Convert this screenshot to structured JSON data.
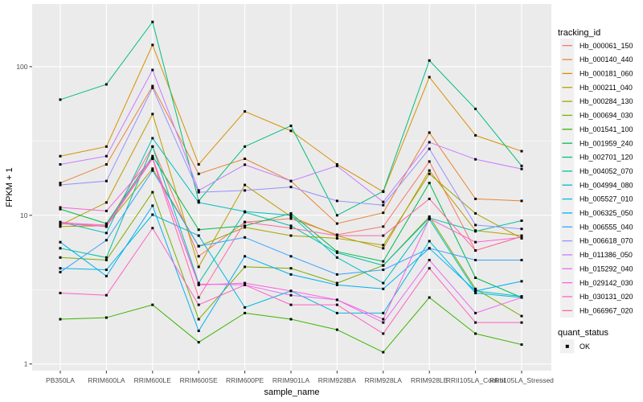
{
  "colors": {
    "panel_bg": "#EBEBEB",
    "grid_major": "#FFFFFF",
    "grid_minor": "#FFFFFF",
    "legend_key_bg": "#F0F0F0",
    "tick_mark": "#333333",
    "tick_label": "#4D4D4D",
    "point": "#000000",
    "page_bg": "#FFFFFF"
  },
  "chart_data": {
    "type": "line",
    "title": "",
    "xlabel": "sample_name",
    "ylabel": "FPKM + 1",
    "x_type": "categorical",
    "y_scale": "log10",
    "ylim": [
      0.9,
      265
    ],
    "y_ticks": [
      1,
      10,
      100
    ],
    "y_minor_ticks": [
      3.162,
      31.62
    ],
    "grid": "on",
    "point_marker": "filled-square",
    "categories": [
      "PB350LA",
      "RRIM600LA",
      "RRIM600LE",
      "RRIM600SE",
      "RRIM600PE",
      "RRIM901LA",
      "RRIM928BA",
      "RRIM928LA",
      "RRIM928LE",
      "RRII105LA_Control",
      "RRII105LA_Stressed"
    ],
    "legend": {
      "position": "right",
      "color_title": "tracking_id",
      "shape_title": "quant_status",
      "shape_items": [
        {
          "label": "OK",
          "marker": "filled-square",
          "color": "#000000"
        }
      ]
    },
    "series": [
      {
        "name": "Hb_000061_150",
        "color": "#F8766D",
        "values": [
          9.0,
          8.4,
          29,
          5.3,
          9.0,
          9.5,
          7.4,
          8.4,
          23,
          5.8,
          7.2
        ]
      },
      {
        "name": "Hb_000140_440",
        "color": "#EA8331",
        "values": [
          16.5,
          22,
          74,
          19,
          24,
          17,
          8.8,
          10.4,
          36,
          12.9,
          12.5
        ]
      },
      {
        "name": "Hb_000181_060",
        "color": "#D89000",
        "values": [
          25,
          29,
          140,
          22,
          50,
          37,
          22,
          14.4,
          85,
          34.5,
          27
        ]
      },
      {
        "name": "Hb_000211_040",
        "color": "#C09B00",
        "values": [
          8.6,
          12.2,
          48,
          4.5,
          16,
          9.8,
          7.3,
          6.0,
          20,
          7.9,
          7.3
        ]
      },
      {
        "name": "Hb_000284_130",
        "color": "#A3A500",
        "values": [
          8.4,
          8.5,
          20.6,
          6.2,
          8.3,
          7.3,
          7.0,
          6.3,
          19,
          10.3,
          7.0
        ]
      },
      {
        "name": "Hb_000694_030",
        "color": "#7CAE00",
        "values": [
          5.2,
          5.0,
          14.3,
          2.0,
          4.5,
          4.4,
          3.5,
          4.6,
          9.8,
          3.2,
          2.1
        ]
      },
      {
        "name": "Hb_001541_100",
        "color": "#39B600",
        "values": [
          2.0,
          2.05,
          2.5,
          1.4,
          2.2,
          2.0,
          1.7,
          1.2,
          2.8,
          1.6,
          1.35
        ]
      },
      {
        "name": "Hb_001959_240",
        "color": "#00BB4E",
        "values": [
          11.0,
          8.8,
          25,
          8.0,
          8.5,
          10.3,
          5.7,
          4.9,
          16.5,
          3.8,
          2.8
        ]
      },
      {
        "name": "Hb_002701_120",
        "color": "#00BF7D",
        "values": [
          60,
          76,
          200,
          12.5,
          29,
          40,
          10,
          14.5,
          110,
          52,
          21.5
        ]
      },
      {
        "name": "Hb_004052_070",
        "color": "#00C1A3",
        "values": [
          6.0,
          5.2,
          29,
          3.5,
          10.5,
          8.5,
          5.6,
          4.6,
          9.6,
          7.8,
          9.2
        ]
      },
      {
        "name": "Hb_004994_080",
        "color": "#00BFC4",
        "values": [
          9.0,
          7.6,
          33,
          12.2,
          10.6,
          10.0,
          5.2,
          3.5,
          9.4,
          3.1,
          2.85
        ]
      },
      {
        "name": "Hb_005527_010",
        "color": "#00BAE0",
        "values": [
          4.4,
          4.3,
          10.1,
          7.3,
          2.4,
          3.1,
          2.2,
          2.2,
          6.7,
          3.0,
          2.8
        ]
      },
      {
        "name": "Hb_006325_050",
        "color": "#00B0F6",
        "values": [
          6.6,
          3.9,
          11.6,
          1.67,
          5.3,
          4.0,
          3.4,
          3.2,
          6.0,
          3.1,
          3.6
        ]
      },
      {
        "name": "Hb_006555_040",
        "color": "#35A2FF",
        "values": [
          4.15,
          6.8,
          20,
          6.2,
          7.1,
          5.3,
          4.0,
          4.3,
          6.0,
          5.0,
          5.0
        ]
      },
      {
        "name": "Hb_006618_070",
        "color": "#9590FF",
        "values": [
          16,
          17,
          72,
          14.3,
          14.7,
          15.5,
          12.5,
          11.7,
          28,
          8.6,
          8.1
        ]
      },
      {
        "name": "Hb_011386_050",
        "color": "#C77CFF",
        "values": [
          22,
          25,
          95,
          14.7,
          21.9,
          17,
          21.5,
          12.3,
          31,
          23.8,
          20.5
        ]
      },
      {
        "name": "Hb_015292_040",
        "color": "#E76BF3",
        "values": [
          8.9,
          8.6,
          24.3,
          3.45,
          3.4,
          2.9,
          2.7,
          1.9,
          5.0,
          2.2,
          2.8
        ]
      },
      {
        "name": "Hb_029142_030",
        "color": "#FA62DB",
        "values": [
          11.3,
          10.7,
          24.3,
          3.4,
          3.5,
          3.1,
          2.7,
          2.0,
          9.5,
          6.6,
          7.1
        ]
      },
      {
        "name": "Hb_030131_020",
        "color": "#FF61C3",
        "values": [
          3.0,
          2.9,
          8.2,
          2.5,
          3.4,
          2.5,
          2.5,
          1.6,
          4.4,
          1.9,
          1.9
        ]
      },
      {
        "name": "Hb_066967_020",
        "color": "#FF67A4",
        "values": [
          8.8,
          8.4,
          24,
          2.8,
          9.0,
          8.2,
          7.3,
          7.3,
          12.9,
          5.8,
          7.2
        ]
      }
    ]
  }
}
